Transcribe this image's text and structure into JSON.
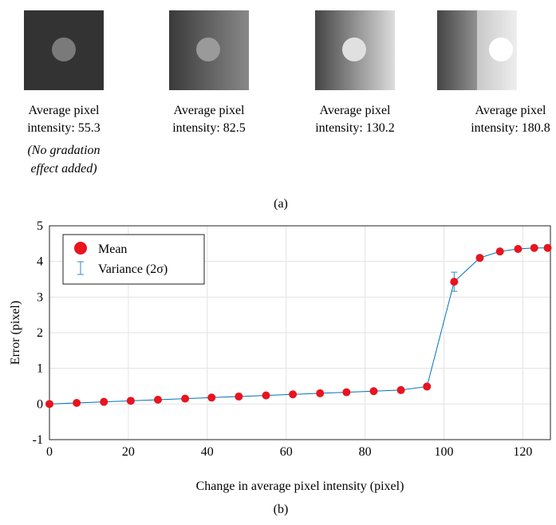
{
  "panel_a": {
    "items": [
      {
        "line1": "Average pixel",
        "line2": "intensity: 55.3",
        "note1": "(No gradation",
        "note2": "effect added)"
      },
      {
        "line1": "Average pixel",
        "line2": "intensity: 82.5"
      },
      {
        "line1": "Average pixel",
        "line2": "intensity: 130.2"
      },
      {
        "line1": "Average pixel",
        "line2": "intensity: 180.8"
      }
    ],
    "label": "(a)"
  },
  "panel_b_label": "(b)",
  "chart_data": {
    "type": "errorbar-line",
    "x_label": "Change in average pixel intensity (pixel)",
    "y_label": "Error (pixel)",
    "x": [
      0,
      6.9,
      13.8,
      20.6,
      27.5,
      34.4,
      41.1,
      48,
      54.9,
      61.7,
      68.6,
      75.3,
      82.2,
      89.1,
      95.7,
      102.6,
      109.1,
      114.2,
      118.8,
      122.9,
      126.3
    ],
    "series": [
      {
        "name": "Mean",
        "color": "#e8141e",
        "line_color": "#0072bd",
        "values": [
          0,
          0.03,
          0.06,
          0.09,
          0.12,
          0.15,
          0.18,
          0.21,
          0.24,
          0.27,
          0.3,
          0.33,
          0.36,
          0.39,
          0.49,
          3.43,
          4.1,
          4.28,
          4.35,
          4.38,
          4.38
        ],
        "errors": [
          0.02,
          0.02,
          0.02,
          0.02,
          0.02,
          0.02,
          0.02,
          0.02,
          0.02,
          0.02,
          0.02,
          0.02,
          0.02,
          0.02,
          0.03,
          0.27,
          0.05,
          0.04,
          0.04,
          0.04,
          0.04
        ],
        "error_name": "Variance (2σ)",
        "error_color": "#2a8fc4"
      }
    ],
    "xlim": [
      0,
      127
    ],
    "xticks": [
      0,
      20,
      40,
      60,
      80,
      100,
      120
    ],
    "ylim": [
      -1,
      5
    ],
    "yticks": [
      -1,
      0,
      1,
      2,
      3,
      4,
      5
    ],
    "grid": true,
    "legend": "upper-left"
  }
}
